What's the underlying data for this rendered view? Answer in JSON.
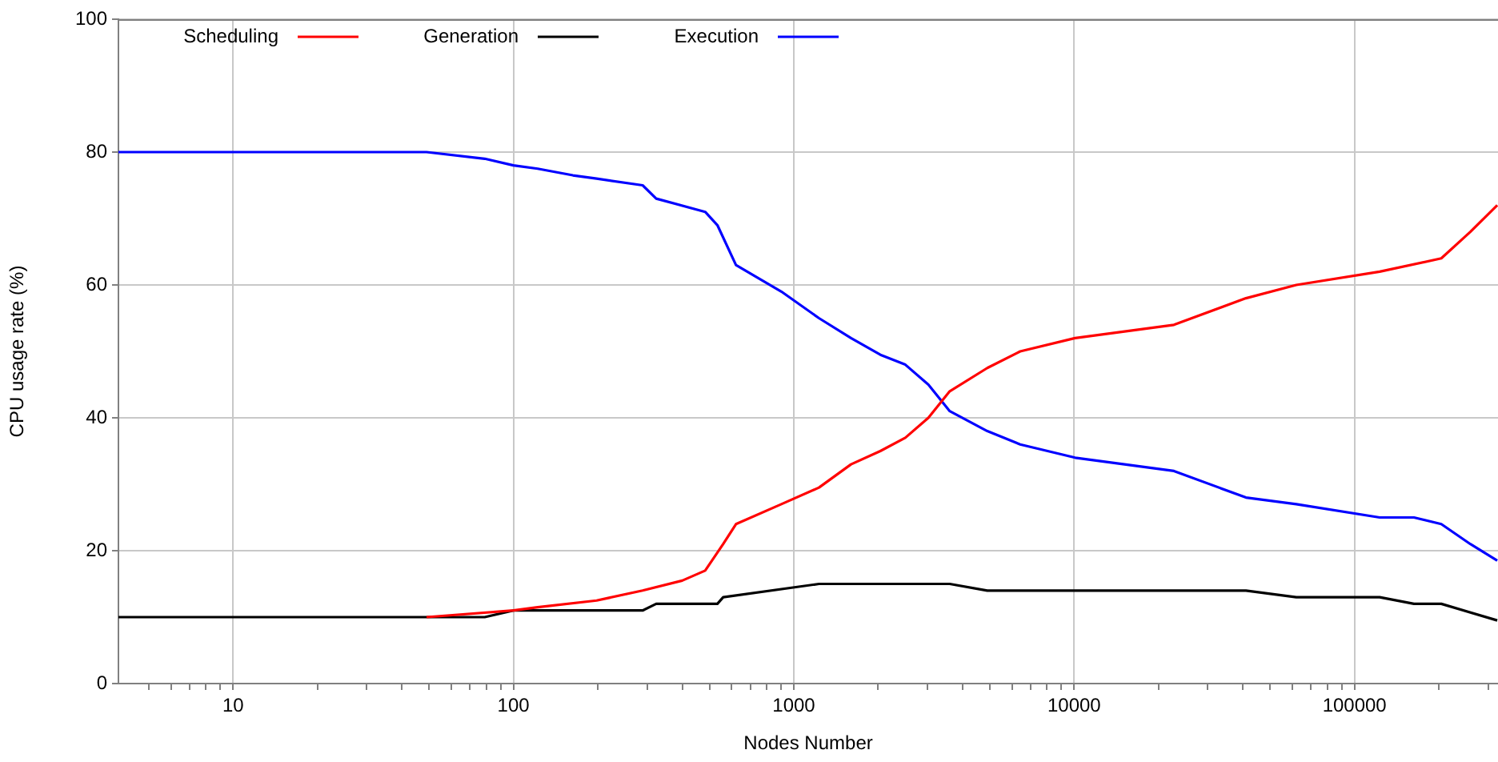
{
  "chart_data": {
    "type": "line",
    "xlabel": "Nodes Number",
    "ylabel": "CPU usage rate (%)",
    "log": "x",
    "grid": true,
    "legend": "top left",
    "xlim": [
      3.9,
      325000
    ],
    "ylim": [
      0,
      100
    ],
    "yticks": [
      0,
      20,
      40,
      60,
      80,
      100
    ],
    "xticks": [
      {
        "value": 5,
        "label": null
      },
      {
        "value": 6,
        "label": null
      },
      {
        "value": 7,
        "label": null
      },
      {
        "value": 8,
        "label": null
      },
      {
        "value": 9,
        "label": null
      },
      10,
      {
        "value": 20,
        "label": null
      },
      {
        "value": 30,
        "label": null
      },
      {
        "value": 40,
        "label": null
      },
      {
        "value": 50,
        "label": null
      },
      {
        "value": 60,
        "label": null
      },
      {
        "value": 70,
        "label": null
      },
      {
        "value": 80,
        "label": null
      },
      {
        "value": 90,
        "label": null
      },
      100,
      {
        "value": 200,
        "label": null
      },
      {
        "value": 300,
        "label": null
      },
      {
        "value": 400,
        "label": null
      },
      {
        "value": 500,
        "label": null
      },
      {
        "value": 600,
        "label": null
      },
      {
        "value": 700,
        "label": null
      },
      {
        "value": 800,
        "label": null
      },
      {
        "value": 900,
        "label": null
      },
      1000,
      {
        "value": 2000,
        "label": null
      },
      {
        "value": 3000,
        "label": null
      },
      {
        "value": 4000,
        "label": null
      },
      {
        "value": 5000,
        "label": null
      },
      {
        "value": 6000,
        "label": null
      },
      {
        "value": 7000,
        "label": null
      },
      {
        "value": 8000,
        "label": null
      },
      {
        "value": 9000,
        "label": null
      },
      10000,
      {
        "value": 20000,
        "label": null
      },
      {
        "value": 30000,
        "label": null
      },
      {
        "value": 40000,
        "label": null
      },
      {
        "value": 50000,
        "label": null
      },
      {
        "value": 60000,
        "label": null
      },
      {
        "value": 70000,
        "label": null
      },
      {
        "value": 80000,
        "label": null
      },
      {
        "value": 90000,
        "label": null
      },
      100000,
      {
        "value": 200000,
        "label": null
      },
      {
        "value": 300000,
        "label": null
      }
    ],
    "series": [
      {
        "name": "Scheduling",
        "color": "#ff0000",
        "x": [
          49,
          100,
          122,
          198,
          289,
          400,
          483,
          560,
          622,
          903,
          1230,
          1600,
          2036,
          2500,
          3020,
          3600,
          4900,
          6420,
          10080,
          22700,
          41000,
          62000,
          123000,
          204000,
          259000,
          323000
        ],
        "values": [
          10,
          11,
          11.5,
          12.5,
          14,
          15.5,
          17,
          21,
          24,
          27,
          29.5,
          33,
          35,
          37,
          40,
          44,
          47.5,
          50,
          52,
          54,
          58,
          60,
          62,
          64,
          68,
          72
        ]
      },
      {
        "name": "Generation",
        "color": "#000000",
        "x": [
          3.9,
          79,
          100,
          289,
          323,
          534,
          560,
          1230,
          3600,
          4900,
          41000,
          62000,
          123000,
          163000,
          204000,
          323000
        ],
        "values": [
          10,
          10,
          11,
          11,
          12,
          12,
          13,
          15,
          15,
          14,
          14,
          13,
          13,
          12,
          12,
          9.5
        ]
      },
      {
        "name": "Execution",
        "color": "#0000ff",
        "x": [
          3.9,
          49,
          79,
          100,
          122,
          163,
          198,
          289,
          323,
          483,
          534,
          622,
          903,
          1230,
          1600,
          2036,
          2500,
          3020,
          3600,
          4900,
          6420,
          10080,
          22700,
          41000,
          62000,
          123000,
          163000,
          204000,
          259000,
          323000
        ],
        "values": [
          80,
          80,
          79,
          78,
          77.5,
          76.5,
          76,
          75,
          73,
          71,
          69,
          63,
          59,
          55,
          52,
          49.5,
          48,
          45,
          41,
          38,
          36,
          34,
          32,
          28,
          27,
          25,
          25,
          24,
          21,
          18.5
        ]
      }
    ]
  }
}
